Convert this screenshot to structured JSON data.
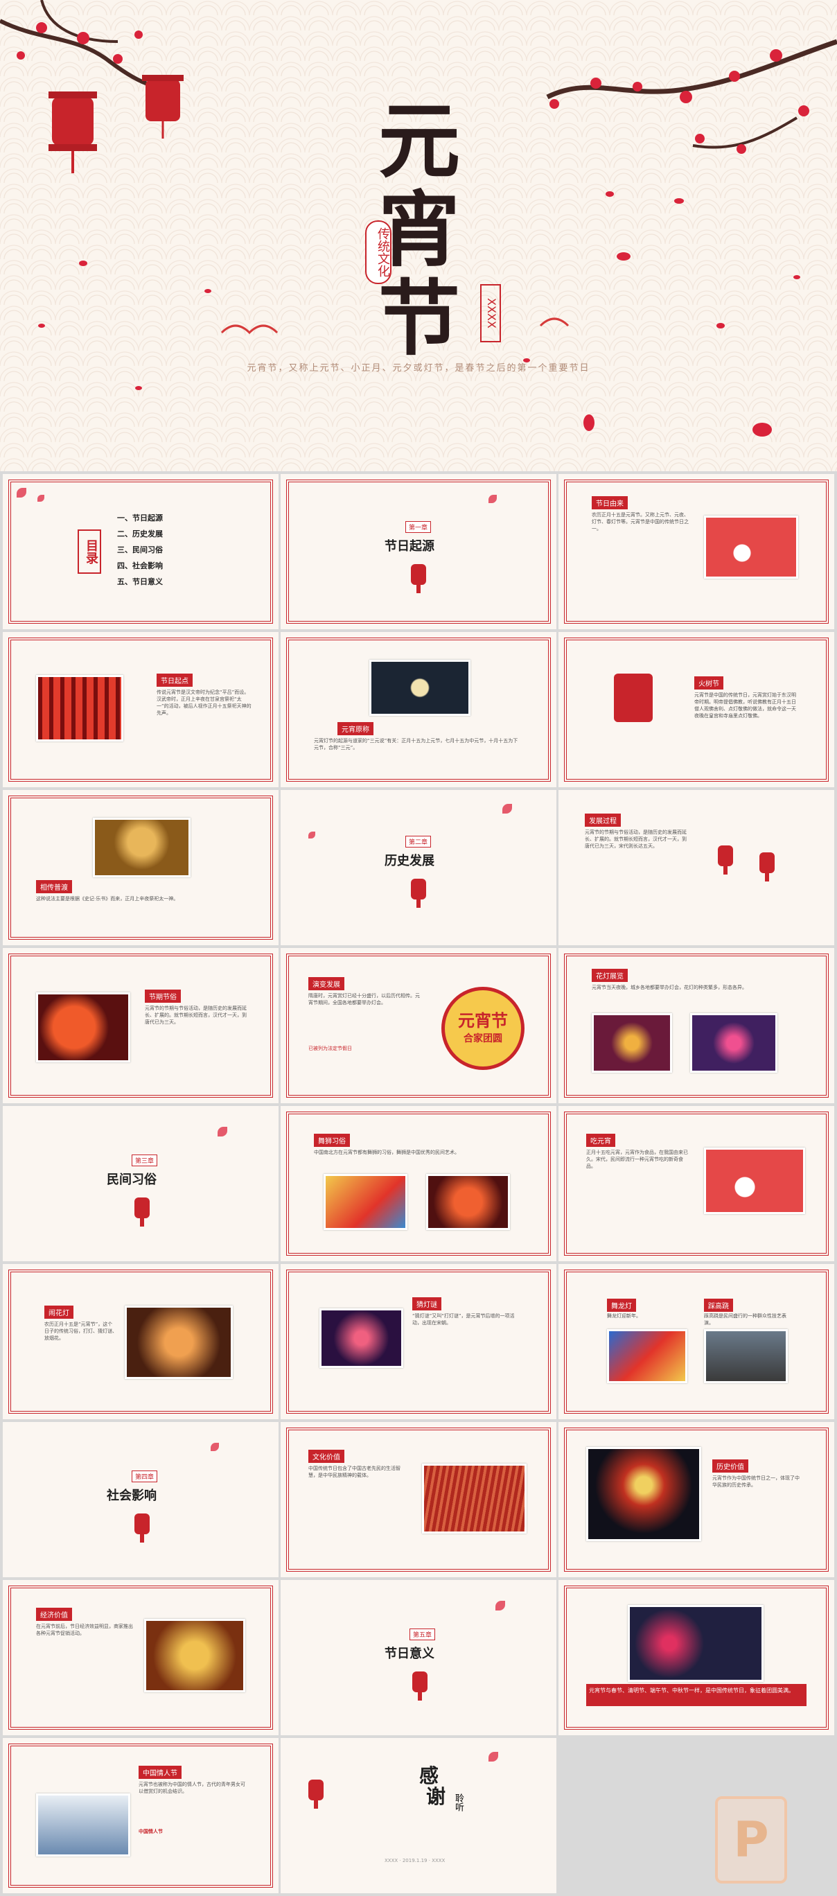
{
  "hero": {
    "title_chars": [
      "元",
      "宵",
      "节"
    ],
    "tag": "传统文化",
    "xbox": "XXXX",
    "subtitle": "元宵节，又称上元节、小正月、元夕或灯节，是春节之后的第一个重要节日"
  },
  "slides": {
    "toc": {
      "heading": "目录",
      "items": [
        "一、节日起源",
        "二、历史发展",
        "三、民间习俗",
        "四、社会影响",
        "五、节日意义"
      ]
    },
    "ch1": {
      "chap": "第一章",
      "title": "节日起源"
    },
    "origin": {
      "label": "节日由来",
      "text": "农历正月十五是元宵节。又称上元节、元夜、灯节、春灯节等。元宵节是中国的传统节日之一。"
    },
    "s4": {
      "label": "节日起点",
      "text": "传说元宵节是汉文帝时为纪念“平吕”而设。汉武帝时，正月上辛夜在甘泉宫祭祀“太一”的活动，被后人视作正月十五祭祀天神的先声。"
    },
    "s5": {
      "label": "元宵原称",
      "text": "元宵灯节的起源与道家的“三元说”有关：正月十五为上元节，七月十五为中元节，十月十五为下元节，合称“三元”。"
    },
    "s6": {
      "label": "火树节",
      "text": "元宵节是中国的传统节日，元宵赏灯始于东汉明帝时期。明帝提倡佛教，听说佛教有正月十五日僧人观佛舍利、点灯敬佛的做法，就命令这一天夜晚在皇宫和寺庙里点灯敬佛。"
    },
    "s7": {
      "label": "相传普渡",
      "text": "这种说法主要是根据《史记·乐书》而来，正月上辛夜祭祀太一神。"
    },
    "ch2": {
      "chap": "第二章",
      "title": "历史发展"
    },
    "s9": {
      "label": "发展过程",
      "text": "元宵节的节期与节俗活动，是随历史的发展而延长、扩展的。就节期长短而言，汉代才一天，到唐代已为三天，宋代则长达五天。"
    },
    "s10": {
      "label": "节期节俗",
      "text": "元宵节的节期与节俗活动，是随历史的发展而延长、扩展的。就节期长短而言，汉代才一天，到唐代已为三天。"
    },
    "s11": {
      "label": "演变发展",
      "badge_top": "元宵节",
      "badge_bottom": "合家团圆",
      "text": "隋唐时，元宵赏灯已经十分盛行，以后历代相传。元宵节期间，全国各地都要举办灯会。",
      "foot": "已被列为法定节假日"
    },
    "s12": {
      "label": "花灯展览",
      "text": "元宵节当天夜晚，城乡各地都要举办灯会，花灯的种类繁多，形态各异。"
    },
    "ch3": {
      "chap": "第三章",
      "title": "民间习俗"
    },
    "s14": {
      "label": "舞狮习俗",
      "text": "中国南北方在元宵节都有舞狮的习俗，舞狮是中国优秀的民间艺术。"
    },
    "s15": {
      "label": "吃元宵",
      "text": "正月十五吃元宵，元宵作为食品，在我国由来已久。宋代，民间即流行一种元宵节吃的新奇食品。"
    },
    "s16": {
      "label": "闹花灯",
      "text": "农历正月十五是“元宵节”，这个日子的传统习俗，打灯、猜灯谜、放烟花。"
    },
    "s17": {
      "label": "猜灯谜",
      "text": "“猜灯谜”又叫“打灯谜”，是元宵节后增的一项活动，出现在宋朝。"
    },
    "s18": {
      "label_a": "舞龙灯",
      "text_a": "舞龙灯迎新年。",
      "label_b": "踩高跷",
      "text_b": "踩高跷是民间盛行的一种群众性技艺表演。"
    },
    "ch4": {
      "chap": "第四章",
      "title": "社会影响"
    },
    "s20": {
      "label": "文化价值",
      "text": "中国传统节日包含了中国古老先民的生活智慧，是中华民族精神的载体。"
    },
    "s21": {
      "label": "历史价值",
      "text": "元宵节作为中国传统节日之一，体现了中华民族的历史传承。"
    },
    "s22": {
      "label": "经济价值",
      "text": "在元宵节前后，节日经济效益明显，商家推出各种元宵节促销活动。"
    },
    "ch5": {
      "chap": "第五章",
      "title": "节日意义"
    },
    "s24": {
      "text": "元宵节与春节、清明节、端午节、中秋节一样，是中国传统节日，象征着团圆美满。"
    },
    "s25": {
      "label": "中国情人节",
      "text": "元宵节也被称为中国的情人节，古代的青年男女可以借赏灯的机会结识。",
      "highlight": "中国情人节"
    },
    "thanks": {
      "chars": [
        "感",
        "谢",
        "聆",
        "听"
      ],
      "foot": "XXXX · 2019.1.19 · XXXX"
    }
  },
  "watermark": "P"
}
